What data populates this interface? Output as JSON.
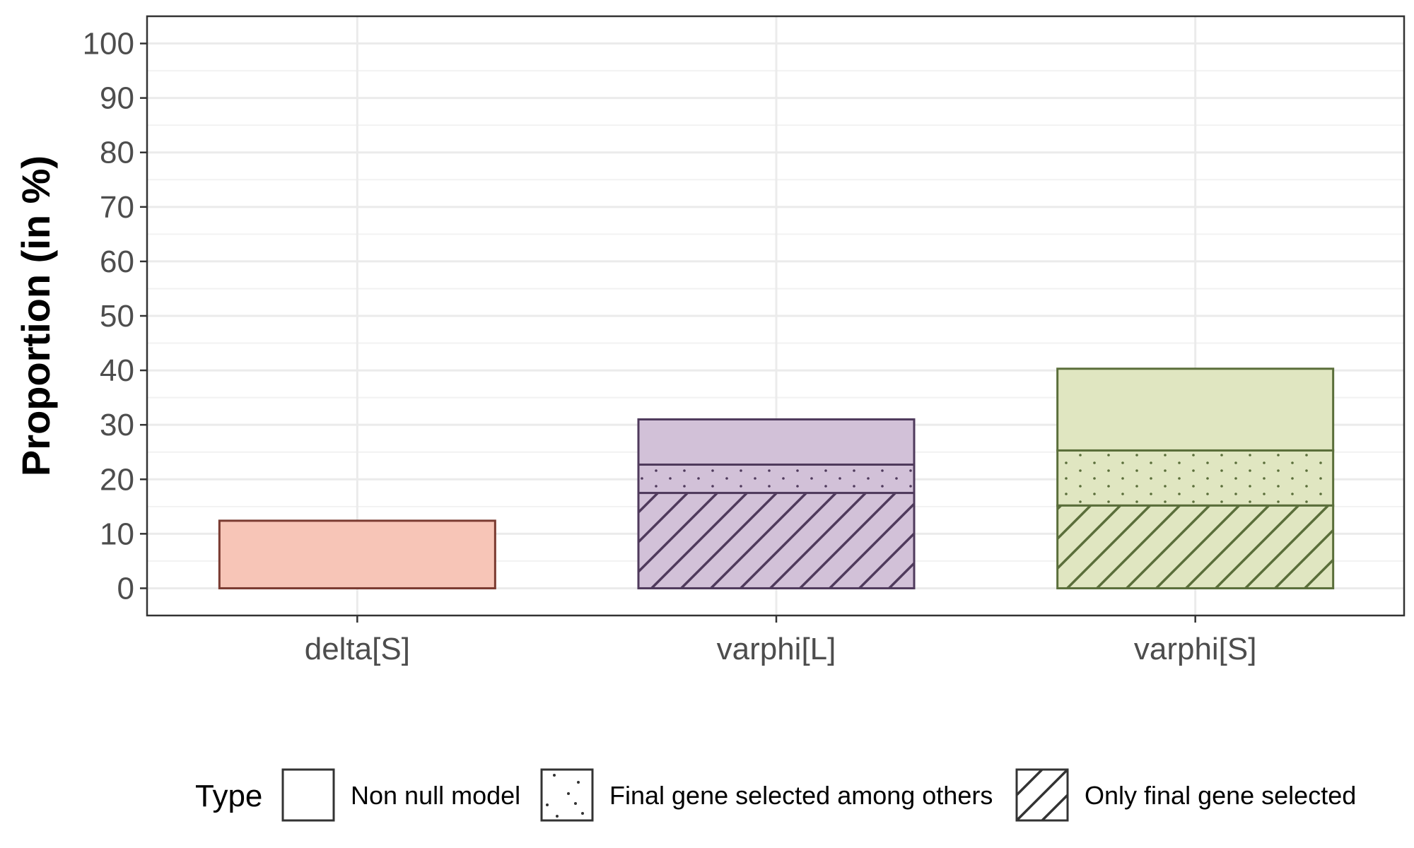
{
  "chart_data": {
    "type": "bar",
    "stacked": true,
    "title": "",
    "xlabel": "",
    "ylabel": "Proportion (in %)",
    "ylim": [
      -5,
      105
    ],
    "y_ticks": [
      0,
      10,
      20,
      30,
      40,
      50,
      60,
      70,
      80,
      90,
      100
    ],
    "grid": true,
    "legend_position": "bottom",
    "categories": [
      "delta[S]",
      "varphi[L]",
      "varphi[S]"
    ],
    "category_colors": {
      "delta[S]": {
        "fill": "#f7c5b7",
        "stroke": "#7a3a30"
      },
      "varphi[L]": {
        "fill": "#d2c1d8",
        "stroke": "#4f3a5c"
      },
      "varphi[S]": {
        "fill": "#e0e6c1",
        "stroke": "#5a6e3a"
      }
    },
    "series": [
      {
        "name": "Only final gene selected",
        "pattern": "hatch",
        "values": [
          0,
          17.5,
          15.2
        ]
      },
      {
        "name": "Final gene selected among others",
        "pattern": "dots",
        "values": [
          0,
          5.2,
          10.1
        ]
      },
      {
        "name": "Non null model",
        "pattern": "none",
        "values": [
          12.4,
          8.3,
          15.0
        ]
      }
    ],
    "legend": {
      "title": "Type",
      "entries": [
        {
          "label": "Non null model",
          "pattern": "none"
        },
        {
          "label": "Final gene selected among others",
          "pattern": "dots"
        },
        {
          "label": "Only final gene selected",
          "pattern": "hatch"
        }
      ]
    }
  }
}
